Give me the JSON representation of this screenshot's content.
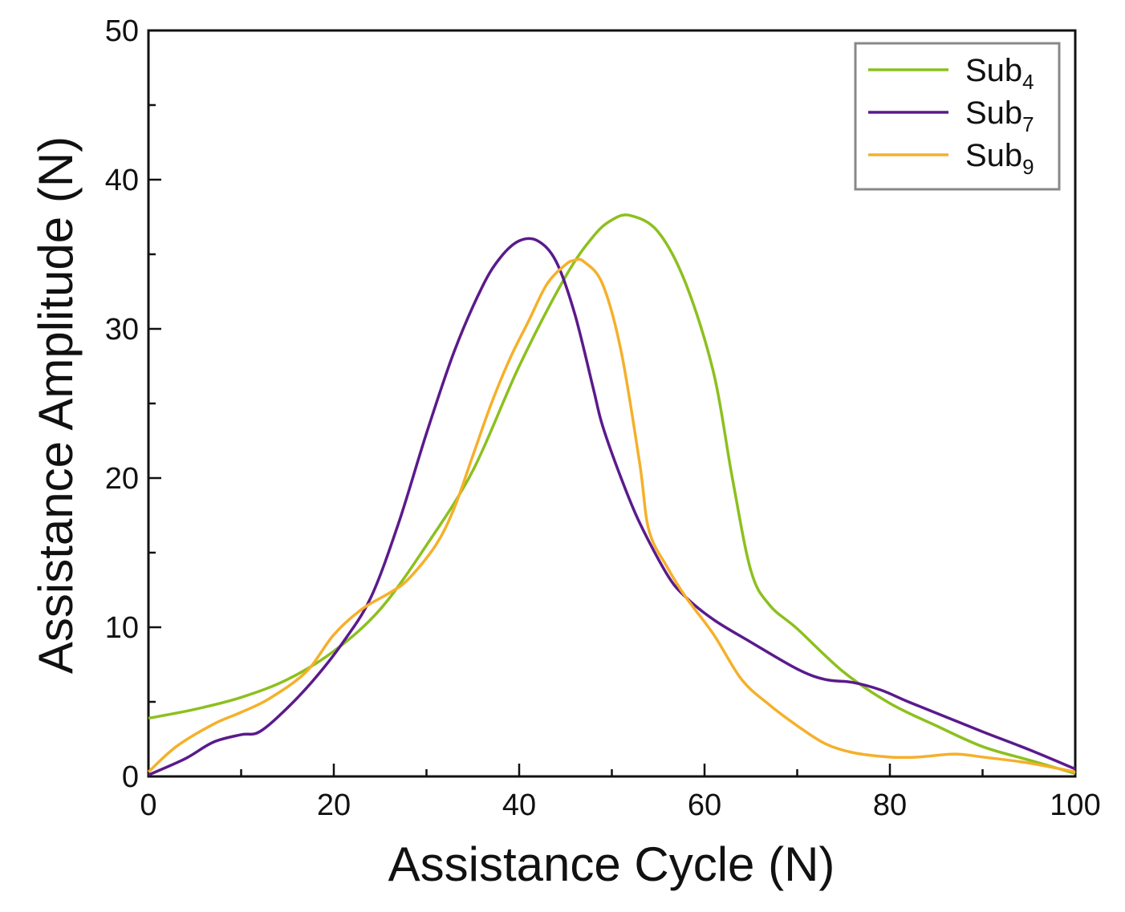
{
  "chart_data": {
    "type": "line",
    "title": "",
    "xlabel": "Assistance Cycle (N)",
    "ylabel": "Assistance Amplitude (N)",
    "xlim": [
      0,
      100
    ],
    "ylim": [
      0,
      50
    ],
    "x_ticks": [
      0,
      20,
      40,
      60,
      80,
      100
    ],
    "y_ticks": [
      0,
      10,
      20,
      30,
      40,
      50
    ],
    "x_minor_step": 10,
    "y_minor_step": 5,
    "grid": false,
    "legend_position": "top-right",
    "series": [
      {
        "name": "Sub",
        "subscript": "4",
        "color": "#8cc01e",
        "points": [
          [
            0,
            3.9
          ],
          [
            5,
            4.5
          ],
          [
            10,
            5.3
          ],
          [
            15,
            6.5
          ],
          [
            20,
            8.4
          ],
          [
            25,
            11.2
          ],
          [
            30,
            15.5
          ],
          [
            35,
            20.5
          ],
          [
            40,
            27.5
          ],
          [
            45,
            33.5
          ],
          [
            48,
            36.2
          ],
          [
            50,
            37.3
          ],
          [
            52,
            37.6
          ],
          [
            55,
            36.5
          ],
          [
            58,
            33
          ],
          [
            61,
            27
          ],
          [
            63,
            20
          ],
          [
            65,
            13.8
          ],
          [
            67,
            11.5
          ],
          [
            70,
            9.9
          ],
          [
            75,
            7
          ],
          [
            80,
            4.9
          ],
          [
            85,
            3.4
          ],
          [
            90,
            2
          ],
          [
            95,
            1.1
          ],
          [
            100,
            0.2
          ]
        ]
      },
      {
        "name": "Sub",
        "subscript": "7",
        "color": "#5a1a8c",
        "points": [
          [
            0,
            0.1
          ],
          [
            4,
            1.2
          ],
          [
            7,
            2.3
          ],
          [
            10,
            2.8
          ],
          [
            12,
            3
          ],
          [
            15,
            4.6
          ],
          [
            18,
            6.6
          ],
          [
            21,
            9
          ],
          [
            24,
            12
          ],
          [
            27,
            17
          ],
          [
            30,
            23
          ],
          [
            33,
            28.5
          ],
          [
            36,
            32.8
          ],
          [
            38,
            34.8
          ],
          [
            40,
            35.9
          ],
          [
            42,
            35.9
          ],
          [
            44,
            34.5
          ],
          [
            46,
            31
          ],
          [
            48,
            26
          ],
          [
            49,
            23.5
          ],
          [
            51,
            20
          ],
          [
            53,
            17
          ],
          [
            56,
            13.5
          ],
          [
            58,
            12
          ],
          [
            61,
            10.5
          ],
          [
            65,
            9
          ],
          [
            70,
            7.2
          ],
          [
            73,
            6.5
          ],
          [
            76,
            6.3
          ],
          [
            79,
            5.8
          ],
          [
            82,
            5
          ],
          [
            86,
            4
          ],
          [
            90,
            3
          ],
          [
            95,
            1.8
          ],
          [
            100,
            0.5
          ]
        ]
      },
      {
        "name": "Sub",
        "subscript": "9",
        "color": "#f5b02a",
        "points": [
          [
            0,
            0.3
          ],
          [
            3,
            2
          ],
          [
            7,
            3.5
          ],
          [
            10,
            4.3
          ],
          [
            13,
            5.2
          ],
          [
            17,
            7
          ],
          [
            20,
            9.5
          ],
          [
            23,
            11.2
          ],
          [
            26,
            12.3
          ],
          [
            28,
            13.2
          ],
          [
            31,
            15.5
          ],
          [
            33,
            18
          ],
          [
            35,
            21.5
          ],
          [
            37,
            25
          ],
          [
            39,
            28
          ],
          [
            41,
            30.5
          ],
          [
            43,
            33
          ],
          [
            45,
            34.3
          ],
          [
            46,
            34.6
          ],
          [
            47,
            34.5
          ],
          [
            49,
            33
          ],
          [
            51,
            28.5
          ],
          [
            53,
            21
          ],
          [
            54,
            16.5
          ],
          [
            56,
            14
          ],
          [
            58,
            12
          ],
          [
            61,
            9.5
          ],
          [
            64,
            6.5
          ],
          [
            67,
            4.8
          ],
          [
            70,
            3.4
          ],
          [
            73,
            2.2
          ],
          [
            76,
            1.6
          ],
          [
            80,
            1.3
          ],
          [
            83,
            1.3
          ],
          [
            87,
            1.5
          ],
          [
            90,
            1.3
          ],
          [
            95,
            0.9
          ],
          [
            100,
            0.3
          ]
        ]
      }
    ]
  }
}
